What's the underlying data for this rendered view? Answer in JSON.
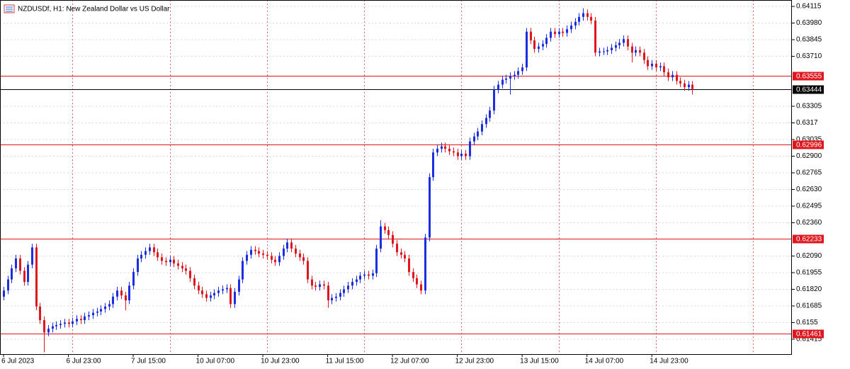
{
  "chart_data": {
    "type": "candlestick",
    "title": "NZDUSDf, H1:  New Zealand Dollar vs US Dollar",
    "up_color": "#1a2fe0",
    "down_color": "#e0161e",
    "level_color": "#e0161e",
    "current_color": "#000000",
    "ylim": [
      0.61294,
      0.64167
    ],
    "yticks": [
      0.64115,
      {
        "value": 0.6398,
        "label": "0.63980"
      },
      0.63845,
      {
        "value": 0.6371,
        "label": "0.63710"
      },
      0.63305,
      0.6317,
      0.63035,
      {
        "value": 0.629,
        "label": "0.62900"
      },
      0.62765,
      {
        "value": 0.6263,
        "label": "0.62630"
      },
      0.62495,
      {
        "value": 0.6236,
        "label": "0.62360"
      },
      {
        "value": 0.6209,
        "label": "0.62090"
      },
      0.61955,
      {
        "value": 0.6182,
        "label": "0.61820"
      },
      0.61685,
      0.6155,
      0.61415
    ],
    "levels": [
      0.63555,
      0.62996,
      0.62233,
      0.61461
    ],
    "current": 0.63444,
    "grid": true,
    "categories": [
      "6 Jul 2023",
      null,
      null,
      null,
      null,
      null,
      null,
      null,
      null,
      null,
      null,
      null,
      null,
      null,
      null,
      null,
      "6 Jul 23:00",
      null,
      null,
      null,
      null,
      null,
      null,
      null,
      null,
      null,
      null,
      null,
      null,
      null,
      null,
      null,
      "7 Jul 15:00",
      null,
      null,
      null,
      null,
      null,
      null,
      null,
      null,
      null,
      null,
      null,
      null,
      null,
      null,
      null,
      "10 Jul 07:00",
      null,
      null,
      null,
      null,
      null,
      null,
      null,
      null,
      null,
      null,
      null,
      null,
      null,
      null,
      null,
      "10 Jul 23:00",
      null,
      null,
      null,
      null,
      null,
      null,
      null,
      null,
      null,
      null,
      null,
      null,
      null,
      null,
      null,
      "11 Jul 15:00",
      null,
      null,
      null,
      null,
      null,
      null,
      null,
      null,
      null,
      null,
      null,
      null,
      null,
      null,
      null,
      "12 Jul 07:00",
      null,
      null,
      null,
      null,
      null,
      null,
      null,
      null,
      null,
      null,
      null,
      null,
      null,
      null,
      null,
      "12 Jul 23:00",
      null,
      null,
      null,
      null,
      null,
      null,
      null,
      null,
      null,
      null,
      null,
      null,
      null,
      null,
      null,
      "13 Jul 15:00",
      null,
      null,
      null,
      null,
      null,
      null,
      null,
      null,
      null,
      null,
      null,
      null,
      null,
      null,
      null,
      "14 Jul 07:00",
      null,
      null,
      null,
      null,
      null,
      null,
      null,
      null,
      null,
      null,
      null,
      null,
      null,
      null,
      null,
      "14 Jul 23:00",
      null,
      null,
      null,
      null,
      null,
      null,
      null,
      null,
      null,
      null
    ],
    "candles": [
      [
        0.6176,
        0.6184,
        0.6173,
        0.6181
      ],
      [
        0.6181,
        0.6193,
        0.6178,
        0.619
      ],
      [
        0.619,
        0.6202,
        0.6187,
        0.6199
      ],
      [
        0.6199,
        0.621,
        0.6196,
        0.6207
      ],
      [
        0.6207,
        0.621,
        0.6194,
        0.6197
      ],
      [
        0.6197,
        0.62,
        0.6185,
        0.6188
      ],
      [
        0.6188,
        0.6205,
        0.6185,
        0.6202
      ],
      [
        0.6202,
        0.6219,
        0.6199,
        0.6216
      ],
      [
        0.6216,
        0.6219,
        0.6165,
        0.6168
      ],
      [
        0.6168,
        0.6171,
        0.6154,
        0.6157
      ],
      [
        0.6157,
        0.616,
        0.6131,
        0.6147
      ],
      [
        0.6147,
        0.6153,
        0.6144,
        0.615
      ],
      [
        0.615,
        0.6155,
        0.6147,
        0.6152
      ],
      [
        0.6152,
        0.6156,
        0.6149,
        0.6153
      ],
      [
        0.6153,
        0.6157,
        0.615,
        0.6154
      ],
      [
        0.6154,
        0.6158,
        0.6151,
        0.6155
      ],
      [
        0.6155,
        0.6158,
        0.6151,
        0.6154
      ],
      [
        0.6154,
        0.6159,
        0.6151,
        0.6156
      ],
      [
        0.6156,
        0.6161,
        0.6153,
        0.6158
      ],
      [
        0.6158,
        0.6161,
        0.6154,
        0.6157
      ],
      [
        0.6157,
        0.6163,
        0.6154,
        0.616
      ],
      [
        0.616,
        0.6164,
        0.6157,
        0.6161
      ],
      [
        0.6161,
        0.6166,
        0.6158,
        0.6163
      ],
      [
        0.6163,
        0.6167,
        0.616,
        0.6164
      ],
      [
        0.6164,
        0.6169,
        0.6161,
        0.6166
      ],
      [
        0.6166,
        0.6171,
        0.6163,
        0.6168
      ],
      [
        0.6168,
        0.6173,
        0.6165,
        0.617
      ],
      [
        0.617,
        0.6179,
        0.6167,
        0.6176
      ],
      [
        0.6176,
        0.6184,
        0.6173,
        0.6181
      ],
      [
        0.6181,
        0.6184,
        0.6174,
        0.6177
      ],
      [
        0.6177,
        0.618,
        0.6165,
        0.6173
      ],
      [
        0.6173,
        0.6188,
        0.617,
        0.6185
      ],
      [
        0.6185,
        0.6199,
        0.6182,
        0.6196
      ],
      [
        0.6196,
        0.621,
        0.6193,
        0.6207
      ],
      [
        0.6207,
        0.6213,
        0.6204,
        0.621
      ],
      [
        0.621,
        0.6216,
        0.6207,
        0.6213
      ],
      [
        0.6213,
        0.6219,
        0.621,
        0.6216
      ],
      [
        0.6216,
        0.6219,
        0.6209,
        0.6212
      ],
      [
        0.6212,
        0.6215,
        0.6205,
        0.6208
      ],
      [
        0.6208,
        0.6211,
        0.6202,
        0.6205
      ],
      [
        0.6205,
        0.6208,
        0.6201,
        0.6204
      ],
      [
        0.6204,
        0.6209,
        0.6201,
        0.6206
      ],
      [
        0.6206,
        0.6209,
        0.62,
        0.6203
      ],
      [
        0.6203,
        0.6206,
        0.6198,
        0.6201
      ],
      [
        0.6201,
        0.6204,
        0.6196,
        0.6199
      ],
      [
        0.6199,
        0.6202,
        0.6194,
        0.6197
      ],
      [
        0.6197,
        0.62,
        0.6188,
        0.6191
      ],
      [
        0.6191,
        0.6194,
        0.6182,
        0.6185
      ],
      [
        0.6185,
        0.6188,
        0.6178,
        0.6181
      ],
      [
        0.6181,
        0.6184,
        0.6175,
        0.6178
      ],
      [
        0.6178,
        0.6181,
        0.6172,
        0.6175
      ],
      [
        0.6175,
        0.618,
        0.6172,
        0.6177
      ],
      [
        0.6177,
        0.6182,
        0.6174,
        0.6179
      ],
      [
        0.6179,
        0.6184,
        0.6176,
        0.6181
      ],
      [
        0.6181,
        0.6185,
        0.6178,
        0.6182
      ],
      [
        0.6182,
        0.6186,
        0.6179,
        0.6183
      ],
      [
        0.6183,
        0.6186,
        0.6167,
        0.617
      ],
      [
        0.617,
        0.6183,
        0.6167,
        0.618
      ],
      [
        0.618,
        0.6193,
        0.6177,
        0.619
      ],
      [
        0.619,
        0.6208,
        0.6187,
        0.6205
      ],
      [
        0.6205,
        0.6213,
        0.6202,
        0.621
      ],
      [
        0.621,
        0.6217,
        0.6207,
        0.6214
      ],
      [
        0.6214,
        0.6217,
        0.621,
        0.6213
      ],
      [
        0.6213,
        0.6216,
        0.6208,
        0.6211
      ],
      [
        0.6211,
        0.6214,
        0.6207,
        0.621
      ],
      [
        0.621,
        0.6213,
        0.6206,
        0.6209
      ],
      [
        0.6209,
        0.6212,
        0.6203,
        0.6206
      ],
      [
        0.6206,
        0.6209,
        0.6201,
        0.6204
      ],
      [
        0.6204,
        0.6212,
        0.6201,
        0.6209
      ],
      [
        0.6209,
        0.6218,
        0.6206,
        0.6215
      ],
      [
        0.6215,
        0.6223,
        0.6212,
        0.622
      ],
      [
        0.622,
        0.6223,
        0.6212,
        0.6215
      ],
      [
        0.6215,
        0.6218,
        0.6208,
        0.6211
      ],
      [
        0.6211,
        0.6214,
        0.6205,
        0.6208
      ],
      [
        0.6208,
        0.6211,
        0.6202,
        0.6205
      ],
      [
        0.6205,
        0.6208,
        0.6187,
        0.619
      ],
      [
        0.619,
        0.6193,
        0.6182,
        0.6185
      ],
      [
        0.6185,
        0.6188,
        0.6181,
        0.6184
      ],
      [
        0.6184,
        0.6189,
        0.6181,
        0.6186
      ],
      [
        0.6186,
        0.6189,
        0.6182,
        0.6185
      ],
      [
        0.6185,
        0.6188,
        0.6167,
        0.6173
      ],
      [
        0.6173,
        0.6178,
        0.617,
        0.6175
      ],
      [
        0.6175,
        0.6179,
        0.6172,
        0.6176
      ],
      [
        0.6176,
        0.6182,
        0.6173,
        0.6179
      ],
      [
        0.6179,
        0.6185,
        0.6176,
        0.6182
      ],
      [
        0.6182,
        0.6188,
        0.6179,
        0.6185
      ],
      [
        0.6185,
        0.6191,
        0.6182,
        0.6188
      ],
      [
        0.6188,
        0.6193,
        0.6185,
        0.619
      ],
      [
        0.619,
        0.6196,
        0.6187,
        0.6193
      ],
      [
        0.6193,
        0.6197,
        0.619,
        0.6194
      ],
      [
        0.6194,
        0.6197,
        0.619,
        0.6193
      ],
      [
        0.6193,
        0.6198,
        0.619,
        0.6195
      ],
      [
        0.6195,
        0.6218,
        0.6192,
        0.6215
      ],
      [
        0.6215,
        0.6238,
        0.6212,
        0.6233
      ],
      [
        0.6233,
        0.6236,
        0.6227,
        0.623
      ],
      [
        0.623,
        0.6233,
        0.6223,
        0.6226
      ],
      [
        0.6226,
        0.6229,
        0.6216,
        0.6219
      ],
      [
        0.6219,
        0.6222,
        0.6209,
        0.6212
      ],
      [
        0.6212,
        0.6215,
        0.6207,
        0.621
      ],
      [
        0.621,
        0.6213,
        0.6204,
        0.6207
      ],
      [
        0.6207,
        0.621,
        0.6193,
        0.6196
      ],
      [
        0.6196,
        0.6199,
        0.6188,
        0.6191
      ],
      [
        0.6191,
        0.6194,
        0.6183,
        0.6186
      ],
      [
        0.6186,
        0.6189,
        0.6178,
        0.6181
      ],
      [
        0.6181,
        0.6227,
        0.6178,
        0.6224
      ],
      [
        0.6224,
        0.6276,
        0.6221,
        0.6273
      ],
      [
        0.6273,
        0.6296,
        0.627,
        0.6293
      ],
      [
        0.6293,
        0.6299,
        0.629,
        0.6296
      ],
      [
        0.6296,
        0.6301,
        0.6293,
        0.6298
      ],
      [
        0.6298,
        0.6301,
        0.6293,
        0.6296
      ],
      [
        0.6296,
        0.6299,
        0.6291,
        0.6294
      ],
      [
        0.6294,
        0.6297,
        0.629,
        0.6293
      ],
      [
        0.6293,
        0.6296,
        0.6287,
        0.629
      ],
      [
        0.629,
        0.6295,
        0.6287,
        0.6292
      ],
      [
        0.6292,
        0.6295,
        0.6287,
        0.629
      ],
      [
        0.629,
        0.6305,
        0.6287,
        0.6302
      ],
      [
        0.6302,
        0.6309,
        0.6299,
        0.6306
      ],
      [
        0.6306,
        0.6313,
        0.6303,
        0.631
      ],
      [
        0.631,
        0.6319,
        0.6307,
        0.6316
      ],
      [
        0.6316,
        0.6324,
        0.6313,
        0.6321
      ],
      [
        0.6321,
        0.633,
        0.6318,
        0.6327
      ],
      [
        0.6327,
        0.6347,
        0.6324,
        0.6344
      ],
      [
        0.6344,
        0.6351,
        0.6341,
        0.6348
      ],
      [
        0.6348,
        0.6355,
        0.6345,
        0.6352
      ],
      [
        0.6352,
        0.6356,
        0.6349,
        0.6353
      ],
      [
        0.6353,
        0.6358,
        0.634,
        0.6355
      ],
      [
        0.6355,
        0.6359,
        0.6352,
        0.6356
      ],
      [
        0.6356,
        0.6362,
        0.6353,
        0.6359
      ],
      [
        0.6359,
        0.6365,
        0.6356,
        0.6362
      ],
      [
        0.6362,
        0.6394,
        0.6359,
        0.6391
      ],
      [
        0.6391,
        0.6394,
        0.6381,
        0.6384
      ],
      [
        0.6384,
        0.6387,
        0.6374,
        0.6377
      ],
      [
        0.6377,
        0.6382,
        0.6374,
        0.6379
      ],
      [
        0.6379,
        0.6384,
        0.6376,
        0.6381
      ],
      [
        0.6381,
        0.6389,
        0.6378,
        0.6386
      ],
      [
        0.6386,
        0.6394,
        0.6383,
        0.6391
      ],
      [
        0.6391,
        0.6394,
        0.6386,
        0.6389
      ],
      [
        0.6389,
        0.6394,
        0.6386,
        0.6391
      ],
      [
        0.6391,
        0.6394,
        0.6387,
        0.639
      ],
      [
        0.639,
        0.6396,
        0.6387,
        0.6393
      ],
      [
        0.6393,
        0.6399,
        0.639,
        0.6396
      ],
      [
        0.6396,
        0.6402,
        0.6393,
        0.6399
      ],
      [
        0.6399,
        0.6406,
        0.6396,
        0.6403
      ],
      [
        0.6403,
        0.641,
        0.64,
        0.6406
      ],
      [
        0.6406,
        0.6409,
        0.64,
        0.6403
      ],
      [
        0.6403,
        0.6406,
        0.6397,
        0.64
      ],
      [
        0.64,
        0.6403,
        0.6371,
        0.6374
      ],
      [
        0.6374,
        0.6378,
        0.6371,
        0.6375
      ],
      [
        0.6375,
        0.6378,
        0.6372,
        0.6375
      ],
      [
        0.6375,
        0.6379,
        0.6372,
        0.6376
      ],
      [
        0.6376,
        0.6381,
        0.6373,
        0.6378
      ],
      [
        0.6378,
        0.6383,
        0.6375,
        0.638
      ],
      [
        0.638,
        0.6385,
        0.6377,
        0.6382
      ],
      [
        0.6382,
        0.6388,
        0.6379,
        0.6385
      ],
      [
        0.6385,
        0.6388,
        0.6376,
        0.6379
      ],
      [
        0.6379,
        0.6382,
        0.6366,
        0.6374
      ],
      [
        0.6374,
        0.6379,
        0.6371,
        0.6376
      ],
      [
        0.6376,
        0.6379,
        0.6371,
        0.6374
      ],
      [
        0.6374,
        0.6377,
        0.6365,
        0.6368
      ],
      [
        0.6368,
        0.6371,
        0.636,
        0.6363
      ],
      [
        0.6363,
        0.6368,
        0.636,
        0.6365
      ],
      [
        0.6365,
        0.6368,
        0.6359,
        0.6362
      ],
      [
        0.6362,
        0.6366,
        0.6359,
        0.6363
      ],
      [
        0.6363,
        0.6366,
        0.6355,
        0.6358
      ],
      [
        0.6358,
        0.6361,
        0.6351,
        0.6354
      ],
      [
        0.6354,
        0.6359,
        0.6351,
        0.6356
      ],
      [
        0.6356,
        0.6359,
        0.6348,
        0.6351
      ],
      [
        0.6351,
        0.6354,
        0.6346,
        0.6349
      ],
      [
        0.6349,
        0.6352,
        0.6343,
        0.6346
      ],
      [
        0.6346,
        0.6351,
        0.6343,
        0.6348
      ],
      [
        0.6348,
        0.6351,
        0.634,
        0.63444
      ]
    ]
  }
}
